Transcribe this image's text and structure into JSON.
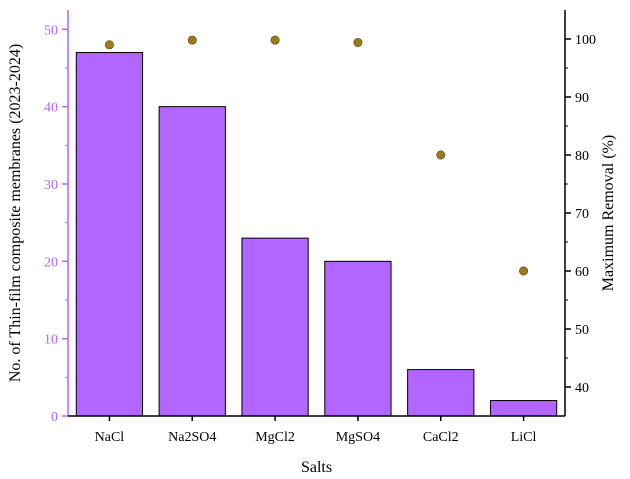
{
  "chart_data": {
    "type": "bar",
    "categories": [
      "NaCl",
      "Na2SO4",
      "MgCl2",
      "MgSO4",
      "CaCl2",
      "LiCl"
    ],
    "series": [
      {
        "type": "bar",
        "axis": "left",
        "values": [
          47,
          40,
          23,
          20,
          6,
          2
        ]
      },
      {
        "type": "scatter",
        "axis": "right",
        "values": [
          99,
          99.8,
          99.8,
          99.4,
          80,
          60
        ]
      }
    ],
    "xlabel": "Salts",
    "ylabel": "No. of Thin-film composite membranes (2023-2024)",
    "y2label": "Maximum Removal (%)",
    "ylim": [
      0,
      52.5
    ],
    "y2lim": [
      35,
      105
    ],
    "yticks": [
      0,
      10,
      20,
      30,
      40,
      50
    ],
    "y2ticks": [
      40,
      50,
      60,
      70,
      80,
      90,
      100
    ],
    "grid": false,
    "colors": {
      "bar_fill": "#b266ff",
      "bar_stroke": "#000000",
      "left_axis": "#b266ff",
      "right_axis": "#000000",
      "point_fill": "#9a7a1a"
    }
  }
}
